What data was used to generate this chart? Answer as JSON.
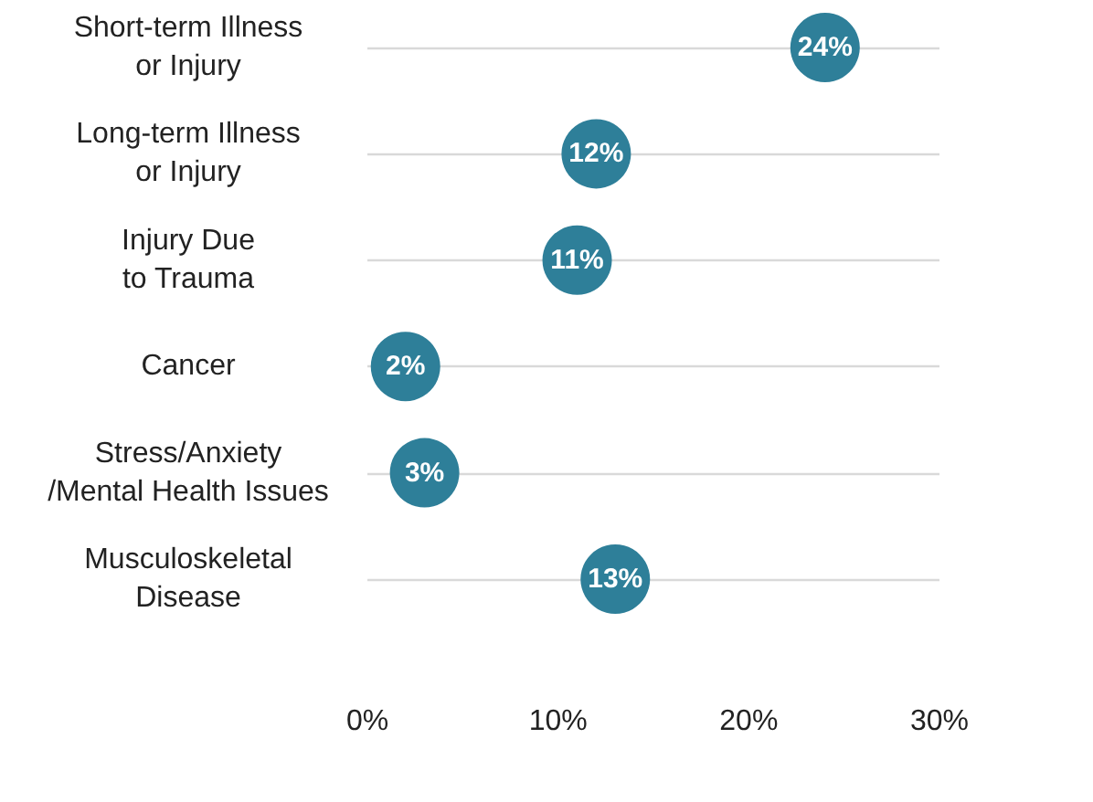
{
  "chart_data": {
    "type": "scatter",
    "orientation": "horizontal",
    "categories": [
      "Short-term Illness\nor Injury",
      "Long-term Illness\nor Injury",
      "Injury Due\nto Trauma",
      "Cancer",
      "Stress/Anxiety\n/Mental Health Issues",
      "Musculoskeletal\nDisease"
    ],
    "values": [
      24,
      12,
      11,
      2,
      3,
      13
    ],
    "value_labels": [
      "24%",
      "12%",
      "11%",
      "2%",
      "3%",
      "13%"
    ],
    "color": "#2e7f99",
    "marker": "circle",
    "grid": "y",
    "xlim": [
      0,
      30
    ],
    "xticks": [
      {
        "value": 0,
        "label": "0%"
      },
      {
        "value": 10,
        "label": "10%"
      },
      {
        "value": 20,
        "label": "20%"
      },
      {
        "value": 30,
        "label": "30%"
      }
    ]
  }
}
